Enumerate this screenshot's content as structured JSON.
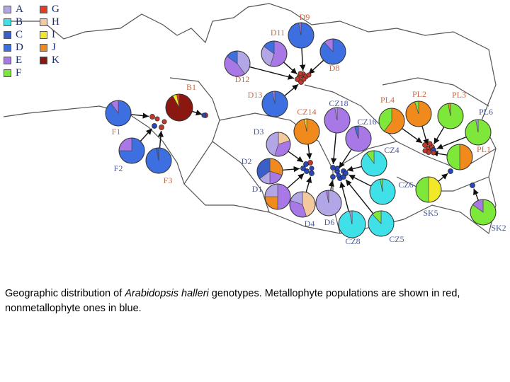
{
  "legend": [
    {
      "code": "A",
      "color": "#b3a6e6"
    },
    {
      "code": "B",
      "color": "#40e0e8"
    },
    {
      "code": "C",
      "color": "#3a5fc8"
    },
    {
      "code": "D",
      "color": "#3e6fe0"
    },
    {
      "code": "E",
      "color": "#a878e6"
    },
    {
      "code": "F",
      "color": "#7ee83a"
    },
    {
      "code": "G",
      "color": "#e83a1c"
    },
    {
      "code": "H",
      "color": "#f5c9a0"
    },
    {
      "code": "I",
      "color": "#f2e82a"
    },
    {
      "code": "J",
      "color": "#f08a1c"
    },
    {
      "code": "K",
      "color": "#8a1810"
    }
  ],
  "colors": {
    "metallophyte": "#c0392b",
    "nonmetallophyte": "#2846b8",
    "label_metallophyte": "#c86a4a",
    "label_nonmetallophyte": "#4a5a9a",
    "border": "#555555"
  },
  "pies": [
    {
      "name": "D9",
      "type": "metallophyte",
      "slices": [
        [
          "D",
          0.97
        ],
        [
          "E",
          0.03
        ]
      ]
    },
    {
      "name": "D11",
      "type": "metallophyte",
      "slices": [
        [
          "E",
          0.55
        ],
        [
          "A",
          0.3
        ],
        [
          "D",
          0.15
        ]
      ]
    },
    {
      "name": "D8",
      "type": "metallophyte",
      "slices": [
        [
          "D",
          0.88
        ],
        [
          "E",
          0.12
        ]
      ]
    },
    {
      "name": "D12",
      "type": "metallophyte",
      "slices": [
        [
          "A",
          0.4
        ],
        [
          "E",
          0.45
        ],
        [
          "D",
          0.15
        ]
      ]
    },
    {
      "name": "D13",
      "type": "metallophyte",
      "slices": [
        [
          "D",
          0.97
        ],
        [
          "E",
          0.03
        ]
      ]
    },
    {
      "name": "B1",
      "type": "metallophyte",
      "slices": [
        [
          "K",
          0.92
        ],
        [
          "I",
          0.05
        ],
        [
          "G",
          0.03
        ]
      ]
    },
    {
      "name": "F1",
      "type": "metallophyte",
      "slices": [
        [
          "D",
          0.9
        ],
        [
          "E",
          0.1
        ]
      ]
    },
    {
      "name": "F2",
      "type": "nonmetallophyte",
      "slices": [
        [
          "D",
          0.75
        ],
        [
          "E",
          0.25
        ]
      ]
    },
    {
      "name": "F3",
      "type": "metallophyte",
      "slices": [
        [
          "D",
          0.97
        ],
        [
          "C",
          0.03
        ]
      ]
    },
    {
      "name": "CZ14",
      "type": "metallophyte",
      "slices": [
        [
          "J",
          0.97
        ],
        [
          "I",
          0.03
        ]
      ]
    },
    {
      "name": "CZ18",
      "type": "nonmetallophyte",
      "slices": [
        [
          "E",
          0.97
        ],
        [
          "A",
          0.03
        ]
      ]
    },
    {
      "name": "CZ16",
      "type": "nonmetallophyte",
      "slices": [
        [
          "E",
          0.95
        ],
        [
          "D",
          0.05
        ]
      ]
    },
    {
      "name": "D3",
      "type": "nonmetallophyte",
      "slices": [
        [
          "H",
          0.2
        ],
        [
          "E",
          0.35
        ],
        [
          "A",
          0.45
        ]
      ]
    },
    {
      "name": "D2",
      "type": "nonmetallophyte",
      "slices": [
        [
          "J",
          0.3
        ],
        [
          "E",
          0.2
        ],
        [
          "A",
          0.15
        ],
        [
          "C",
          0.35
        ]
      ]
    },
    {
      "name": "D1",
      "type": "nonmetallophyte",
      "slices": [
        [
          "E",
          0.5
        ],
        [
          "J",
          0.25
        ],
        [
          "A",
          0.25
        ]
      ]
    },
    {
      "name": "D4",
      "type": "nonmetallophyte",
      "slices": [
        [
          "H",
          0.45
        ],
        [
          "E",
          0.35
        ],
        [
          "A",
          0.2
        ]
      ]
    },
    {
      "name": "D6",
      "type": "nonmetallophyte",
      "slices": [
        [
          "A",
          0.97
        ],
        [
          "E",
          0.03
        ]
      ]
    },
    {
      "name": "CZ8",
      "type": "nonmetallophyte",
      "slices": [
        [
          "B",
          0.97
        ],
        [
          "A",
          0.03
        ]
      ]
    },
    {
      "name": "CZ5",
      "type": "nonmetallophyte",
      "slices": [
        [
          "B",
          0.88
        ],
        [
          "F",
          0.12
        ]
      ]
    },
    {
      "name": "CZ4",
      "type": "nonmetallophyte",
      "slices": [
        [
          "B",
          0.9
        ],
        [
          "F",
          0.1
        ]
      ]
    },
    {
      "name": "CZ6",
      "type": "nonmetallophyte",
      "slices": [
        [
          "B",
          0.97
        ],
        [
          "F",
          0.03
        ]
      ]
    },
    {
      "name": "PL4",
      "type": "metallophyte",
      "slices": [
        [
          "J",
          0.6
        ],
        [
          "F",
          0.4
        ]
      ]
    },
    {
      "name": "PL2",
      "type": "metallophyte",
      "slices": [
        [
          "J",
          0.95
        ],
        [
          "F",
          0.05
        ]
      ]
    },
    {
      "name": "PL3",
      "type": "metallophyte",
      "slices": [
        [
          "F",
          0.97
        ],
        [
          "J",
          0.03
        ]
      ]
    },
    {
      "name": "PL6",
      "type": "nonmetallophyte",
      "slices": [
        [
          "F",
          0.97
        ],
        [
          "A",
          0.03
        ]
      ]
    },
    {
      "name": "PL1",
      "type": "metallophyte",
      "slices": [
        [
          "J",
          0.5
        ],
        [
          "F",
          0.5
        ]
      ]
    },
    {
      "name": "SK5",
      "type": "nonmetallophyte",
      "slices": [
        [
          "I",
          0.5
        ],
        [
          "F",
          0.5
        ]
      ]
    },
    {
      "name": "SK2",
      "type": "nonmetallophyte",
      "slices": [
        [
          "F",
          0.85
        ],
        [
          "E",
          0.15
        ]
      ]
    }
  ],
  "caption": {
    "before": "Geographic distribution of ",
    "species": "Arabidopsis halleri",
    "after": " genotypes. Metallophyte populations are shown in red, nonmetallophyte ones in blue."
  }
}
